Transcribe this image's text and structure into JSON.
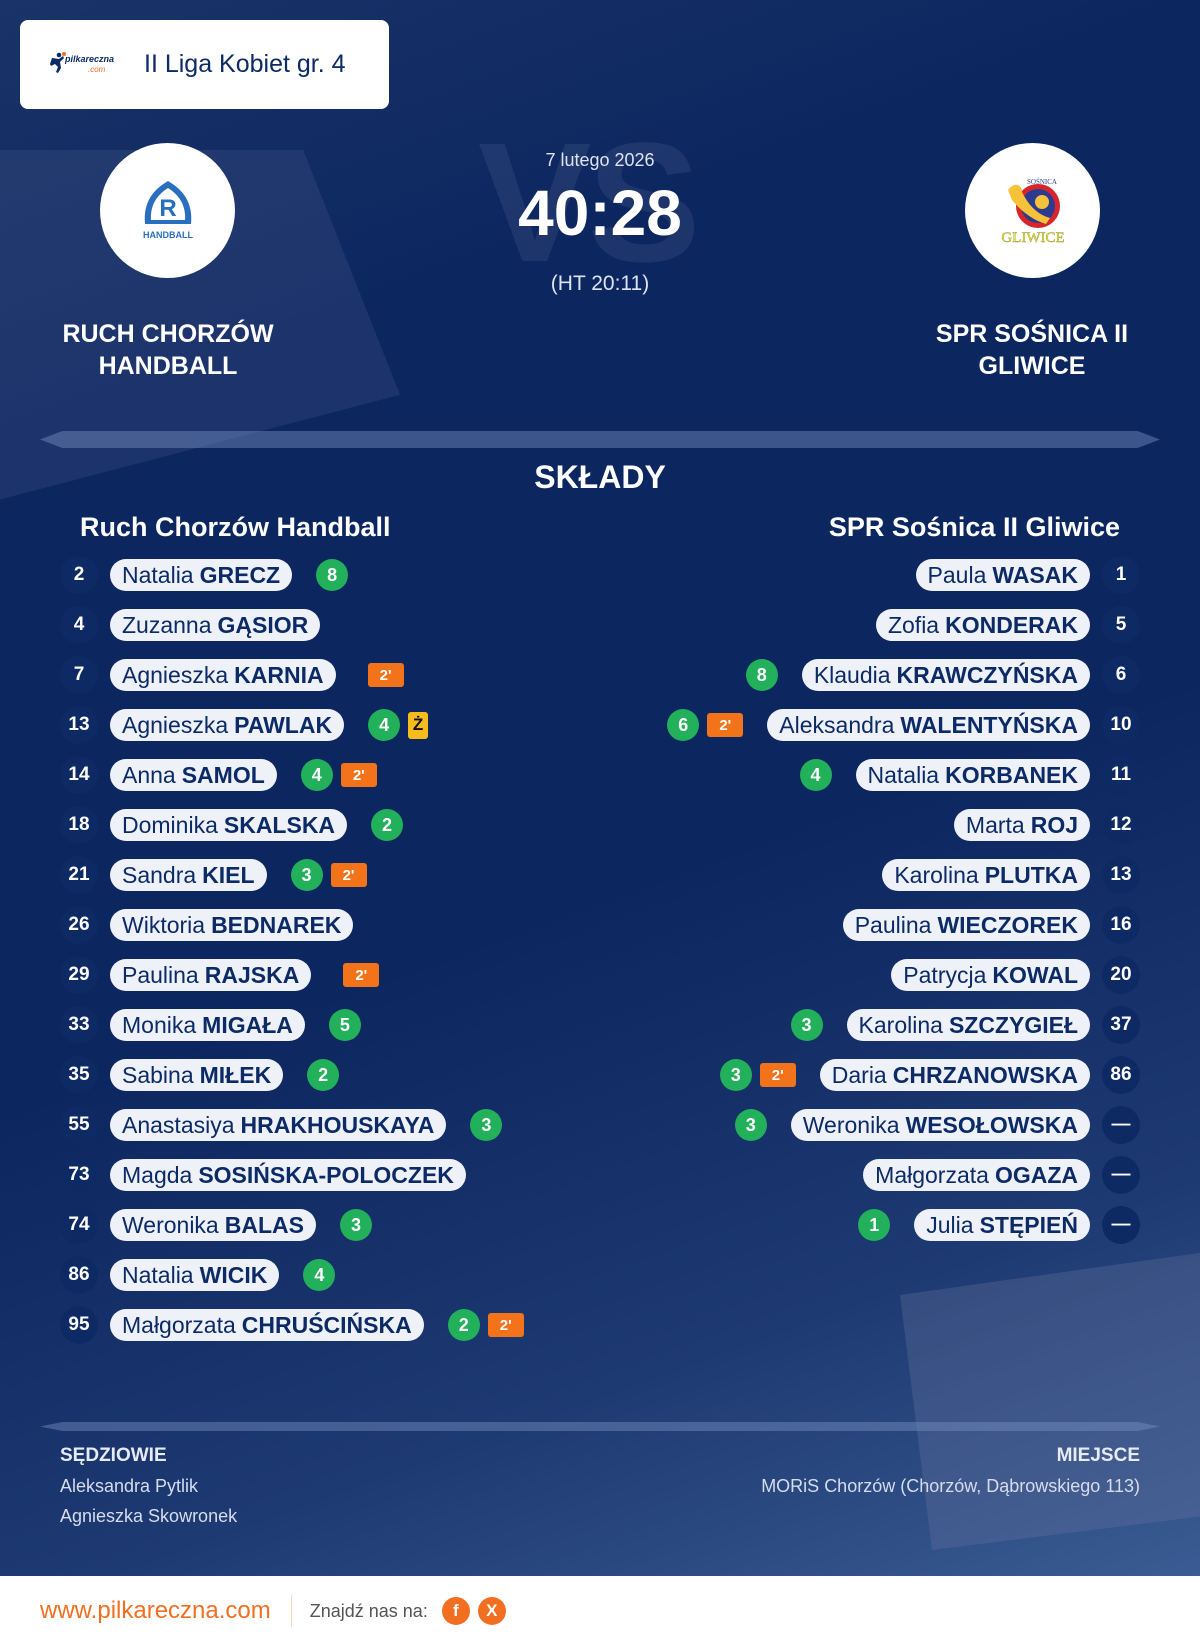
{
  "league": {
    "brand": "pilkareczna",
    "brand_suffix": ".com",
    "name": "II Liga Kobiet gr. 4"
  },
  "match": {
    "date": "7 lutego 2026",
    "score": "40:28",
    "halftime": "(HT 20:11)",
    "vs_watermark": "VS"
  },
  "home": {
    "title_line1": "RUCH CHORZÓW",
    "title_line2": "HANDBALL",
    "roster_title": "Ruch Chorzów Handball",
    "logo_text": "HANDBALL",
    "logo_letter": "R",
    "players": [
      {
        "num": "2",
        "first": "Natalia",
        "last": "GRECZ",
        "goals": "8",
        "penalty": "",
        "card": ""
      },
      {
        "num": "4",
        "first": "Zuzanna",
        "last": "GĄSIOR",
        "goals": "",
        "penalty": "",
        "card": ""
      },
      {
        "num": "7",
        "first": "Agnieszka",
        "last": "KARNIA",
        "goals": "",
        "penalty": "2'",
        "card": ""
      },
      {
        "num": "13",
        "first": "Agnieszka",
        "last": "PAWLAK",
        "goals": "4",
        "penalty": "",
        "card": "Ż"
      },
      {
        "num": "14",
        "first": "Anna",
        "last": "SAMOL",
        "goals": "4",
        "penalty": "2'",
        "card": ""
      },
      {
        "num": "18",
        "first": "Dominika",
        "last": "SKALSKA",
        "goals": "2",
        "penalty": "",
        "card": ""
      },
      {
        "num": "21",
        "first": "Sandra",
        "last": "KIEL",
        "goals": "3",
        "penalty": "2'",
        "card": ""
      },
      {
        "num": "26",
        "first": "Wiktoria",
        "last": "BEDNAREK",
        "goals": "",
        "penalty": "",
        "card": ""
      },
      {
        "num": "29",
        "first": "Paulina",
        "last": "RAJSKA",
        "goals": "",
        "penalty": "2'",
        "card": ""
      },
      {
        "num": "33",
        "first": "Monika",
        "last": "MIGAŁA",
        "goals": "5",
        "penalty": "",
        "card": ""
      },
      {
        "num": "35",
        "first": "Sabina",
        "last": "MIŁEK",
        "goals": "2",
        "penalty": "",
        "card": ""
      },
      {
        "num": "55",
        "first": "Anastasiya",
        "last": "HRAKHOUSKAYA",
        "goals": "3",
        "penalty": "",
        "card": ""
      },
      {
        "num": "73",
        "first": "Magda",
        "last": "SOSIŃSKA-POLOCZEK",
        "goals": "",
        "penalty": "",
        "card": ""
      },
      {
        "num": "74",
        "first": "Weronika",
        "last": "BALAS",
        "goals": "3",
        "penalty": "",
        "card": ""
      },
      {
        "num": "86",
        "first": "Natalia",
        "last": "WICIK",
        "goals": "4",
        "penalty": "",
        "card": ""
      },
      {
        "num": "95",
        "first": "Małgorzata",
        "last": "CHRUŚCIŃSKA",
        "goals": "2",
        "penalty": "2'",
        "card": ""
      }
    ]
  },
  "away": {
    "title_line1": "SPR SOŚNICA II",
    "title_line2": "GLIWICE",
    "roster_title": "SPR Sośnica II Gliwice",
    "logo_text": "GLIWICE",
    "logo_top_text": "SOŚNICA",
    "players": [
      {
        "num": "1",
        "first": "Paula",
        "last": "WASAK",
        "goals": "",
        "penalty": ""
      },
      {
        "num": "5",
        "first": "Zofia",
        "last": "KONDERAK",
        "goals": "",
        "penalty": ""
      },
      {
        "num": "6",
        "first": "Klaudia",
        "last": "KRAWCZYŃSKA",
        "goals": "8",
        "penalty": ""
      },
      {
        "num": "10",
        "first": "Aleksandra",
        "last": "WALENTYŃSKA",
        "goals": "6",
        "penalty": "2'"
      },
      {
        "num": "11",
        "first": "Natalia",
        "last": "KORBANEK",
        "goals": "4",
        "penalty": ""
      },
      {
        "num": "12",
        "first": "Marta",
        "last": "ROJ",
        "goals": "",
        "penalty": ""
      },
      {
        "num": "13",
        "first": "Karolina",
        "last": "PLUTKA",
        "goals": "",
        "penalty": ""
      },
      {
        "num": "16",
        "first": "Paulina",
        "last": "WIECZOREK",
        "goals": "",
        "penalty": ""
      },
      {
        "num": "20",
        "first": "Patrycja",
        "last": "KOWAL",
        "goals": "",
        "penalty": ""
      },
      {
        "num": "37",
        "first": "Karolina",
        "last": "SZCZYGIEŁ",
        "goals": "3",
        "penalty": ""
      },
      {
        "num": "86",
        "first": "Daria",
        "last": "CHRZANOWSKA",
        "goals": "3",
        "penalty": "2'"
      },
      {
        "num": "—",
        "first": "Weronika",
        "last": "WESOŁOWSKA",
        "goals": "3",
        "penalty": ""
      },
      {
        "num": "—",
        "first": "Małgorzata",
        "last": "OGAZA",
        "goals": "",
        "penalty": ""
      },
      {
        "num": "—",
        "first": "Julia",
        "last": "STĘPIEŃ",
        "goals": "1",
        "penalty": ""
      }
    ]
  },
  "sections": {
    "lineups": "SKŁADY"
  },
  "referees": {
    "heading": "SĘDZIOWIE",
    "names": [
      "Aleksandra Pytlik",
      "Agnieszka Skowronek"
    ]
  },
  "venue": {
    "heading": "MIEJSCE",
    "value": "MORiS Chorzów (Chorzów, Dąbrowskiego 113)"
  },
  "footer": {
    "site": "www.pilkareczna.com",
    "find_us": "Znajdź nas na:",
    "social": [
      "f",
      "X"
    ]
  },
  "colors": {
    "background": "#0c2660",
    "goals": "#22b05a",
    "penalty": "#f2731a",
    "yellow_card": "#f6bb1d",
    "brand_orange": "#f26f21",
    "text_navy": "#0b2a66"
  }
}
